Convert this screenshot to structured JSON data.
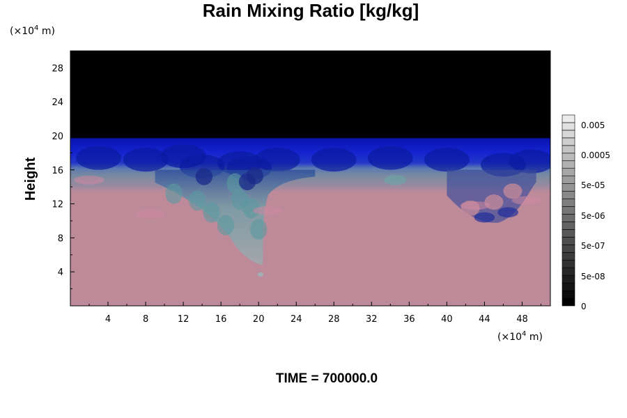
{
  "chart_data": {
    "type": "heatmap",
    "title": "Rain Mixing Ratio [kg/kg]",
    "ylabel": "Height",
    "xlabel": "",
    "x_unit": "(×10",
    "y_unit": "(×10",
    "unit_exponent": "4",
    "unit_suffix": " m)",
    "time_label": "TIME = 700000.0",
    "xlim": [
      0,
      51
    ],
    "ylim": [
      0,
      30
    ],
    "x_ticks": [
      4,
      8,
      12,
      16,
      20,
      24,
      28,
      32,
      36,
      40,
      44,
      48
    ],
    "y_ticks": [
      4,
      8,
      12,
      16,
      20,
      24,
      28
    ],
    "regions": [
      {
        "band": "0-13.5",
        "color": "#bd8a9a"
      },
      {
        "band": "13.5-16.5",
        "color": "#7a8a9c"
      },
      {
        "band": "16.5-19.5",
        "color": "#1020c8"
      },
      {
        "band": "19.5-30",
        "color": "#000000"
      }
    ],
    "colorbar": {
      "levels": 25,
      "tick_labels": [
        "0.005",
        "0.0005",
        "5e-05",
        "5e-06",
        "5e-07",
        "5e-08",
        "0"
      ]
    }
  }
}
